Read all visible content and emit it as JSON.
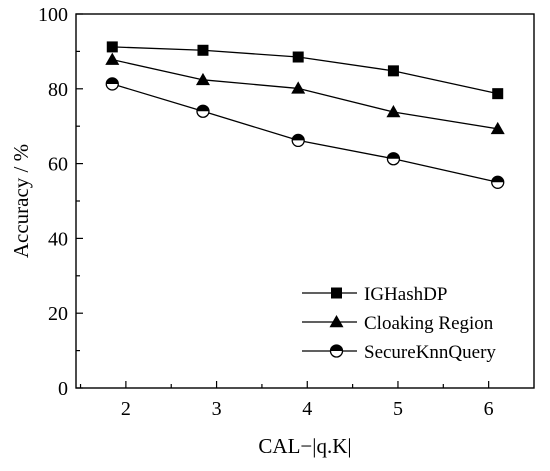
{
  "chart_data": {
    "type": "line",
    "title": "",
    "xlabel": "CAL−|q.K|",
    "ylabel": "Accuracy / %",
    "x": [
      2,
      3,
      4,
      5,
      6
    ],
    "x_ticks": [
      "2",
      "3",
      "4",
      "5",
      "6"
    ],
    "y_ticks": [
      "0",
      "20",
      "40",
      "60",
      "80",
      "100"
    ],
    "ylim": [
      0,
      100
    ],
    "grid": false,
    "legend_position": "bottom-right",
    "series": [
      {
        "name": "IGHashDP",
        "marker": "filled-square",
        "color": "#000000",
        "x": [
          1.85,
          2.85,
          3.9,
          4.95,
          6.1
        ],
        "values": [
          91.2,
          90.3,
          88.5,
          84.8,
          78.7
        ]
      },
      {
        "name": "Cloaking Region",
        "marker": "filled-triangle",
        "color": "#000000",
        "x": [
          1.85,
          2.85,
          3.9,
          4.95,
          6.1
        ],
        "values": [
          87.8,
          82.4,
          80.1,
          73.8,
          69.3
        ]
      },
      {
        "name": "SecureKnnQuery",
        "marker": "half-filled-circle",
        "color": "#000000",
        "x": [
          1.85,
          2.85,
          3.9,
          4.95,
          6.1
        ],
        "values": [
          81.3,
          74.0,
          66.2,
          61.3,
          55.0
        ]
      }
    ]
  }
}
